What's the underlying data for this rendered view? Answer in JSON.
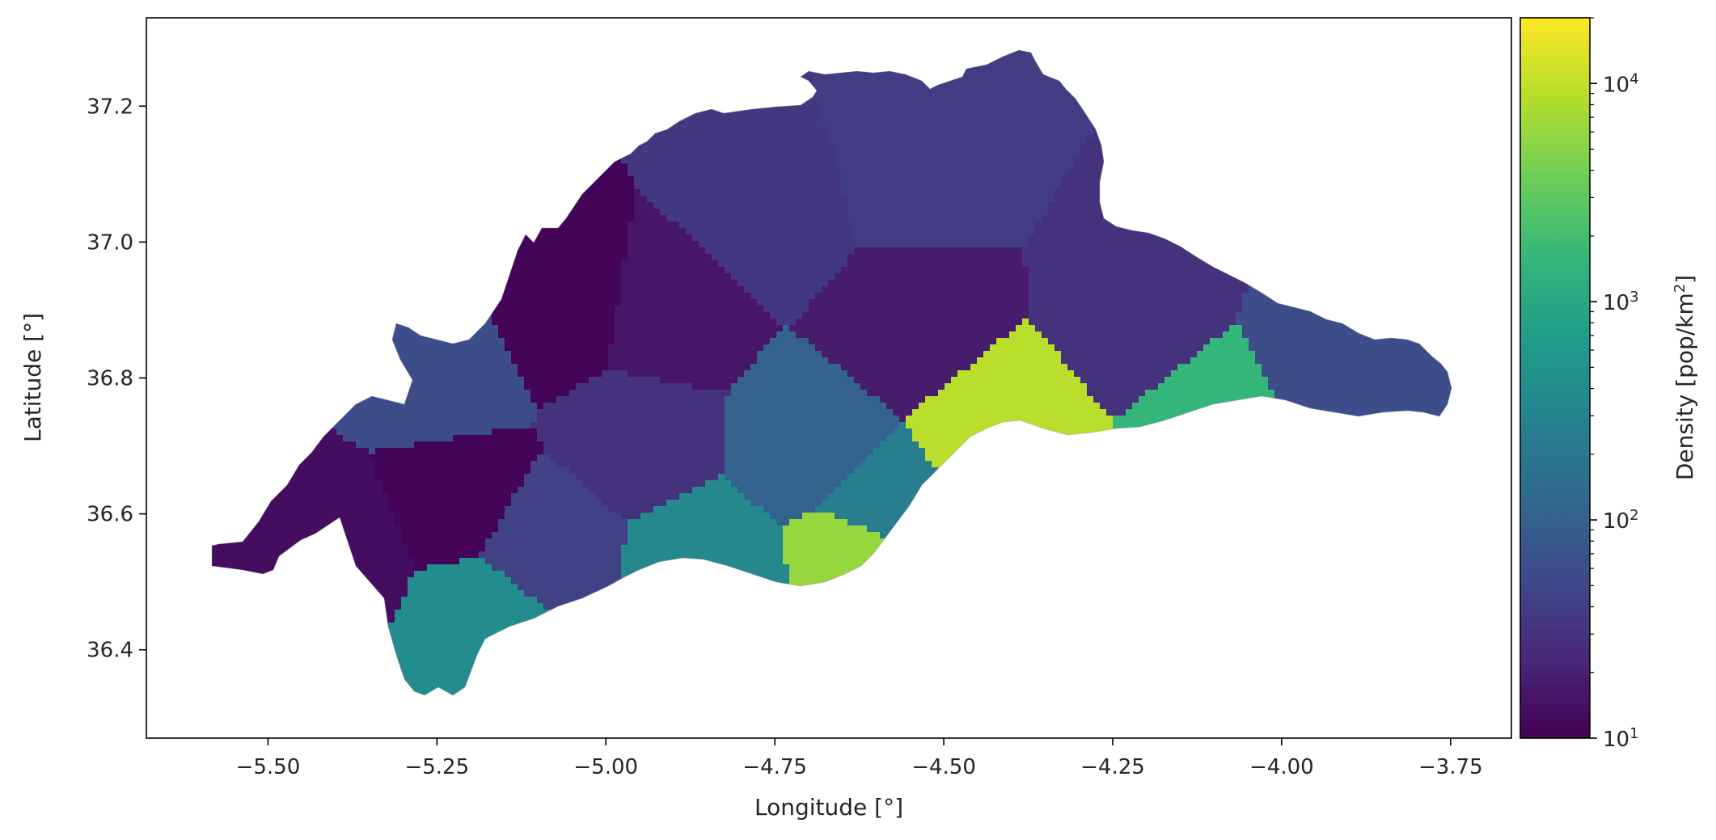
{
  "chart_data": {
    "type": "choropleth-map",
    "xlabel": "Longitude [°]",
    "ylabel": "Latitude [°]",
    "xlim": [
      -5.68,
      -3.66
    ],
    "ylim": [
      36.27,
      37.33
    ],
    "xticks": [
      -5.5,
      -5.25,
      -5.0,
      -4.75,
      -4.5,
      -4.25,
      -4.0,
      -3.75
    ],
    "xtick_labels": [
      "−5.50",
      "−5.25",
      "−5.00",
      "−4.75",
      "−4.50",
      "−4.25",
      "−4.00",
      "−3.75"
    ],
    "yticks": [
      36.4,
      36.6,
      36.8,
      37.0,
      37.2
    ],
    "ytick_labels": [
      "36.4",
      "36.6",
      "36.8",
      "37.0",
      "37.2"
    ],
    "colorbar": {
      "label": "Density [pop/km²]",
      "label_base": "Density [pop/km",
      "label_sup": "2",
      "label_end": "]",
      "colormap": "viridis",
      "scale": "log",
      "range": [
        10,
        20000
      ],
      "ticks": [
        10,
        100,
        1000,
        10000
      ],
      "tick_bases": [
        "10",
        "10",
        "10",
        "10"
      ],
      "tick_exponents": [
        "1",
        "2",
        "3",
        "4"
      ]
    },
    "colormap_stops": [
      "#440154",
      "#482878",
      "#3e4989",
      "#31688e",
      "#26828e",
      "#1f9e89",
      "#35b779",
      "#6ece58",
      "#b5de2b",
      "#fde725"
    ],
    "regions": [
      {
        "lon": -5.22,
        "lat": 36.62,
        "density": 11
      },
      {
        "lon": -5.05,
        "lat": 36.9,
        "density": 11
      },
      {
        "lon": -4.92,
        "lat": 36.88,
        "density": 16
      },
      {
        "lon": -4.55,
        "lat": 36.88,
        "density": 18
      },
      {
        "lon": -5.4,
        "lat": 36.55,
        "density": 13
      },
      {
        "lon": -5.1,
        "lat": 36.55,
        "density": 45
      },
      {
        "lon": -4.95,
        "lat": 36.72,
        "density": 30
      },
      {
        "lon": -5.25,
        "lat": 36.8,
        "density": 60
      },
      {
        "lon": -4.75,
        "lat": 37.05,
        "density": 35
      },
      {
        "lon": -4.55,
        "lat": 37.1,
        "density": 40
      },
      {
        "lon": -4.2,
        "lat": 36.9,
        "density": 30
      },
      {
        "lon": -3.95,
        "lat": 36.82,
        "density": 60
      },
      {
        "lon": -4.7,
        "lat": 36.7,
        "density": 110
      },
      {
        "lon": -4.6,
        "lat": 36.6,
        "density": 250
      },
      {
        "lon": -4.42,
        "lat": 36.72,
        "density": 9000
      },
      {
        "lon": -4.62,
        "lat": 36.55,
        "density": 6000
      },
      {
        "lon": -4.85,
        "lat": 36.52,
        "density": 350
      },
      {
        "lon": -5.18,
        "lat": 36.45,
        "density": 400
      },
      {
        "lon": -4.08,
        "lat": 36.75,
        "density": 1500
      }
    ]
  }
}
